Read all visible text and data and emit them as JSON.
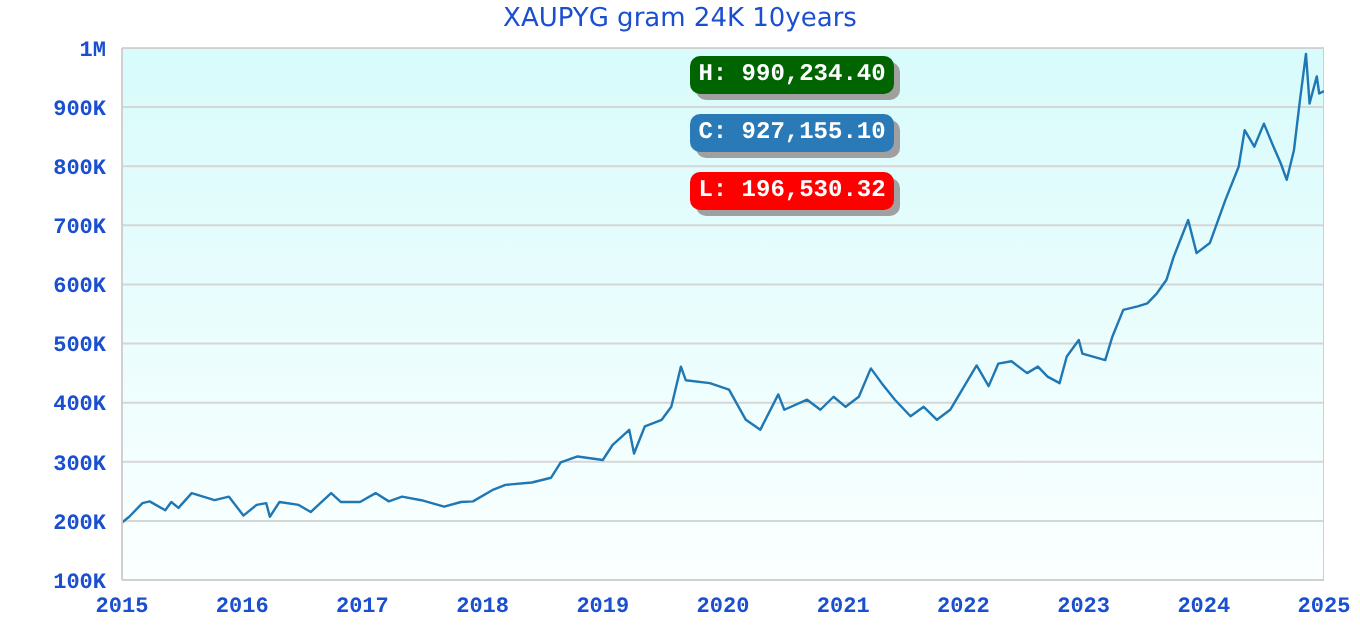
{
  "chart_data": {
    "type": "line",
    "title": "XAUPYG gram 24K 10years",
    "annotations": [
      "H: 990,234.40",
      "C: 927,155.10",
      "L: 196,530.32"
    ],
    "x": [
      2015.0,
      2015.06,
      2015.17,
      2015.23,
      2015.36,
      2015.41,
      2015.47,
      2015.58,
      2015.77,
      2015.89,
      2016.01,
      2016.12,
      2016.2,
      2016.23,
      2016.31,
      2016.47,
      2016.57,
      2016.74,
      2016.82,
      2016.98,
      2017.11,
      2017.22,
      2017.33,
      2017.49,
      2017.68,
      2017.82,
      2017.92,
      2018.09,
      2018.19,
      2018.41,
      2018.57,
      2018.65,
      2018.79,
      2019.0,
      2019.08,
      2019.22,
      2019.26,
      2019.35,
      2019.49,
      2019.57,
      2019.65,
      2019.69,
      2019.89,
      2020.05,
      2020.19,
      2020.31,
      2020.46,
      2020.51,
      2020.7,
      2020.81,
      2020.92,
      2021.02,
      2021.13,
      2021.23,
      2021.32,
      2021.43,
      2021.56,
      2021.67,
      2021.78,
      2021.89,
      2021.99,
      2022.11,
      2022.21,
      2022.29,
      2022.4,
      2022.53,
      2022.62,
      2022.7,
      2022.8,
      2022.86,
      2022.96,
      2022.99,
      2023.18,
      2023.24,
      2023.33,
      2023.45,
      2023.53,
      2023.61,
      2023.69,
      2023.75,
      2023.87,
      2023.94,
      2024.05,
      2024.18,
      2024.29,
      2024.34,
      2024.42,
      2024.5,
      2024.58,
      2024.64,
      2024.69,
      2024.75,
      2024.8,
      2024.85,
      2024.88,
      2024.94,
      2024.96,
      2025.0
    ],
    "series": [
      {
        "color": "#1f77b4",
        "values": [
          197000,
          207000,
          230000,
          233000,
          218000,
          232000,
          222000,
          247000,
          235000,
          241000,
          209000,
          227000,
          230000,
          207000,
          232000,
          227000,
          215000,
          247000,
          232000,
          232000,
          247000,
          233000,
          241000,
          235000,
          224000,
          232000,
          233000,
          253000,
          261000,
          265000,
          273000,
          299000,
          309000,
          303000,
          328000,
          354000,
          314000,
          360000,
          371000,
          393000,
          461000,
          438000,
          433000,
          422000,
          371000,
          354000,
          414000,
          388000,
          405000,
          388000,
          410000,
          393000,
          410000,
          458000,
          433000,
          405000,
          377000,
          393000,
          371000,
          388000,
          422000,
          463000,
          428000,
          466000,
          470000,
          450000,
          461000,
          444000,
          433000,
          478000,
          506000,
          483000,
          472000,
          512000,
          557000,
          563000,
          568000,
          585000,
          608000,
          647000,
          709000,
          653000,
          670000,
          743000,
          799000,
          861000,
          833000,
          872000,
          833000,
          805000,
          777000,
          827000,
          912000,
          990000,
          906000,
          952000,
          923000,
          927000
        ]
      }
    ],
    "xlim": [
      2015,
      2025
    ],
    "xticks": [
      2015,
      2016,
      2017,
      2018,
      2019,
      2020,
      2021,
      2022,
      2023,
      2024,
      2025
    ],
    "ylim": [
      100000,
      1000000
    ],
    "yticks": [
      {
        "value": 100000,
        "label": "100K"
      },
      {
        "value": 200000,
        "label": "200K"
      },
      {
        "value": 300000,
        "label": "300K"
      },
      {
        "value": 400000,
        "label": "400K"
      },
      {
        "value": 500000,
        "label": "500K"
      },
      {
        "value": 600000,
        "label": "600K"
      },
      {
        "value": 700000,
        "label": "700K"
      },
      {
        "value": 800000,
        "label": "800K"
      },
      {
        "value": 900000,
        "label": "900K"
      },
      {
        "value": 1000000,
        "label": "1M"
      }
    ],
    "grid": "y",
    "marker": "none",
    "line_style": "solid"
  }
}
